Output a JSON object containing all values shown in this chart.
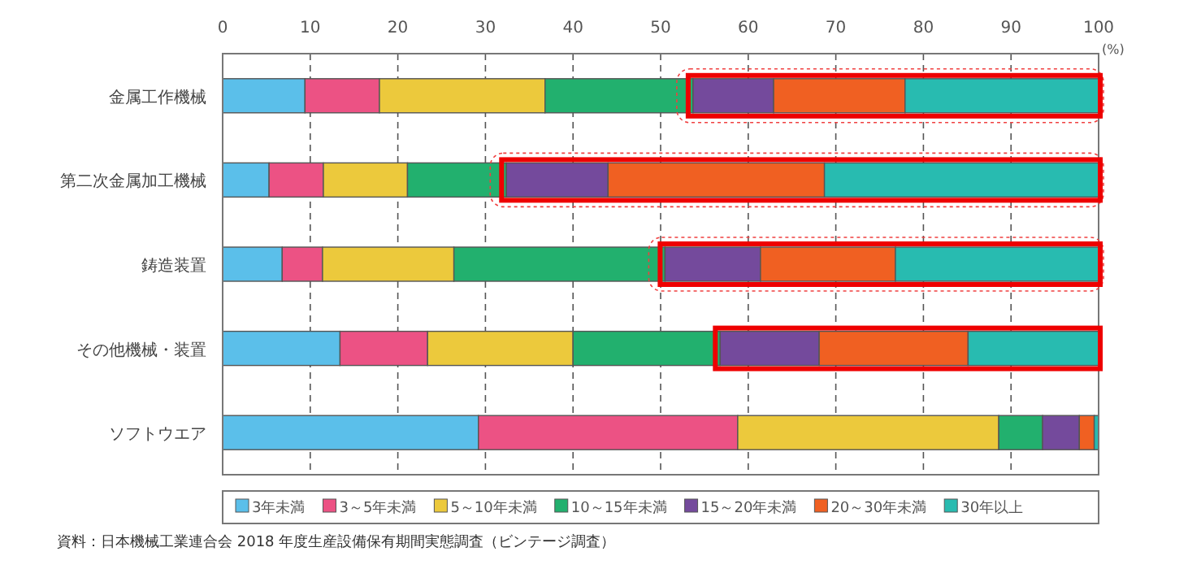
{
  "chart_data": {
    "type": "bar",
    "orientation": "horizontal",
    "stacked": true,
    "xlabel": "(%)",
    "categories": [
      "金属工作機械",
      "第二次金属加工機械",
      "鋳造装置",
      "その他機械・装置",
      "ソフトウエア"
    ],
    "series": [
      {
        "name": "3年未満",
        "color": "#5bbfea",
        "values": [
          9.4,
          5.3,
          6.8,
          13.4,
          29.2
        ]
      },
      {
        "name": "3～5年未満",
        "color": "#ec5284",
        "values": [
          8.5,
          6.2,
          4.6,
          10.0,
          29.6
        ]
      },
      {
        "name": "5～10年未満",
        "color": "#ecc93c",
        "values": [
          18.9,
          9.6,
          15.0,
          16.6,
          29.8
        ]
      },
      {
        "name": "10～15年未満",
        "color": "#22b06e",
        "values": [
          16.9,
          11.3,
          24.1,
          16.8,
          5.0
        ]
      },
      {
        "name": "15～20年未満",
        "color": "#744a9c",
        "values": [
          9.2,
          11.6,
          10.9,
          11.3,
          4.2
        ]
      },
      {
        "name": "20～30年未満",
        "color": "#f06022",
        "values": [
          15.0,
          24.7,
          15.4,
          17.0,
          1.7
        ]
      },
      {
        "name": "30年以上",
        "color": "#28bbb0",
        "values": [
          22.1,
          31.3,
          23.2,
          14.9,
          0.5
        ]
      }
    ],
    "xlim": [
      0,
      100
    ],
    "xticks": [
      0,
      10,
      20,
      30,
      40,
      50,
      60,
      70,
      80,
      90,
      100
    ],
    "grid": "x",
    "legend": "bottom",
    "annotations": [
      "資料：日本機械工業連合会 2018 年度生産設備保有期間実態調査（ビンテージ調査）"
    ]
  }
}
